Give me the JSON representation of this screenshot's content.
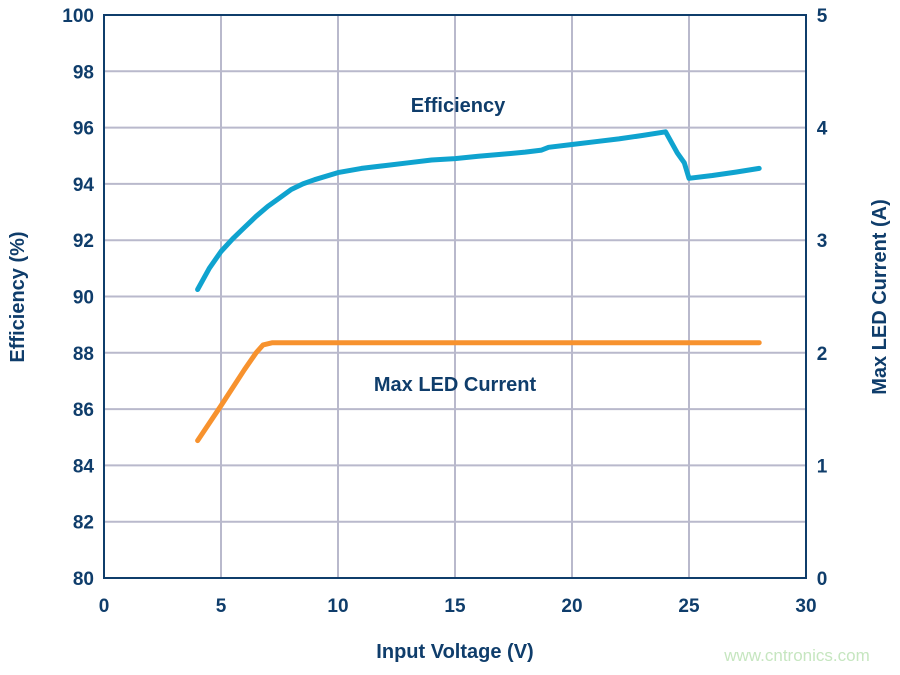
{
  "chart_data": {
    "type": "line",
    "title": "",
    "xlabel": "Input Voltage (V)",
    "ylabel": "Efficiency (%)",
    "y2label": "Max LED Current (A)",
    "xlim": [
      0,
      30
    ],
    "ylim": [
      80,
      100
    ],
    "y2lim": [
      0,
      5
    ],
    "grid": true,
    "x_ticks": [
      "0",
      "5",
      "10",
      "15",
      "20",
      "25",
      "30"
    ],
    "y_ticks": [
      "80",
      "82",
      "84",
      "86",
      "88",
      "90",
      "92",
      "94",
      "96",
      "98",
      "100"
    ],
    "y2_ticks": [
      "0",
      "1",
      "2",
      "3",
      "4",
      "5"
    ],
    "series": [
      {
        "name": "Efficiency",
        "axis": "left",
        "color": "#0fa3cf",
        "x": [
          4,
          4.5,
          5,
          5.5,
          6,
          6.5,
          7,
          7.5,
          8,
          8.5,
          9,
          10,
          11,
          12,
          13,
          14,
          15,
          16,
          17,
          18,
          18.7,
          19,
          20,
          21,
          22,
          23,
          24,
          24.5,
          24.8,
          25,
          26,
          27,
          28
        ],
        "y": [
          90.25,
          91.0,
          91.6,
          92.05,
          92.45,
          92.85,
          93.2,
          93.5,
          93.8,
          94.0,
          94.15,
          94.4,
          94.55,
          94.65,
          94.75,
          94.85,
          94.9,
          94.98,
          95.05,
          95.13,
          95.2,
          95.3,
          95.4,
          95.5,
          95.6,
          95.72,
          95.85,
          95.1,
          94.75,
          94.2,
          94.3,
          94.42,
          94.55
        ]
      },
      {
        "name": "Max LED Current",
        "axis": "right",
        "color": "#f7922e",
        "x": [
          4,
          5,
          6,
          6.5,
          6.8,
          7.2,
          10,
          15,
          20,
          25,
          28
        ],
        "y": [
          1.22,
          1.53,
          1.85,
          2.0,
          2.07,
          2.09,
          2.09,
          2.09,
          2.09,
          2.09,
          2.09
        ]
      }
    ],
    "annotations": [
      "Efficiency",
      "Max LED Current"
    ]
  },
  "watermark": "www.cntronics.com"
}
